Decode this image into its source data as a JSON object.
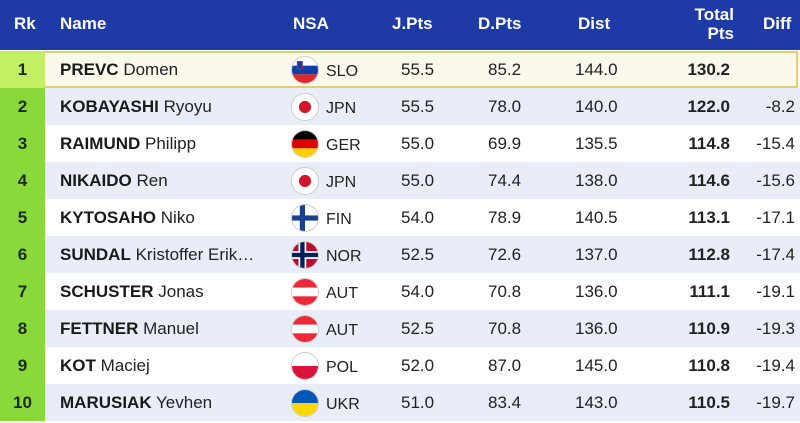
{
  "header": {
    "rk": "Rk",
    "name": "Name",
    "nsa": "NSA",
    "jpts": "J.Pts",
    "dpts": "D.Pts",
    "dist": "Dist",
    "total_line1": "Total",
    "total_line2": "Pts",
    "diff": "Diff"
  },
  "colors": {
    "header_bg": "#1d3aa6",
    "rank_green": "#8ad93a",
    "rank_top": "#c3ef64",
    "row_alt": "#e9edf7",
    "leader_border": "#e6cc74"
  },
  "rows": [
    {
      "rk": "1",
      "last": "PREVC",
      "first": "Domen",
      "flag": "slovenia-flag-icon",
      "nsa": "SLO",
      "jpts": "55.5",
      "dpts": "85.2",
      "dist": "144.0",
      "total": "130.2",
      "diff": ""
    },
    {
      "rk": "2",
      "last": "KOBAYASHI",
      "first": "Ryoyu",
      "flag": "japan-flag-icon",
      "nsa": "JPN",
      "jpts": "55.5",
      "dpts": "78.0",
      "dist": "140.0",
      "total": "122.0",
      "diff": "-8.2"
    },
    {
      "rk": "3",
      "last": "RAIMUND",
      "first": "Philipp",
      "flag": "germany-flag-icon",
      "nsa": "GER",
      "jpts": "55.0",
      "dpts": "69.9",
      "dist": "135.5",
      "total": "114.8",
      "diff": "-15.4"
    },
    {
      "rk": "4",
      "last": "NIKAIDO",
      "first": "Ren",
      "flag": "japan-flag-icon",
      "nsa": "JPN",
      "jpts": "55.0",
      "dpts": "74.4",
      "dist": "138.0",
      "total": "114.6",
      "diff": "-15.6"
    },
    {
      "rk": "5",
      "last": "KYTOSAHO",
      "first": "Niko",
      "flag": "finland-flag-icon",
      "nsa": "FIN",
      "jpts": "54.0",
      "dpts": "78.9",
      "dist": "140.5",
      "total": "113.1",
      "diff": "-17.1"
    },
    {
      "rk": "6",
      "last": "SUNDAL",
      "first": "Kristoffer Erik…",
      "flag": "norway-flag-icon",
      "nsa": "NOR",
      "jpts": "52.5",
      "dpts": "72.6",
      "dist": "137.0",
      "total": "112.8",
      "diff": "-17.4"
    },
    {
      "rk": "7",
      "last": "SCHUSTER",
      "first": "Jonas",
      "flag": "austria-flag-icon",
      "nsa": "AUT",
      "jpts": "54.0",
      "dpts": "70.8",
      "dist": "136.0",
      "total": "111.1",
      "diff": "-19.1"
    },
    {
      "rk": "8",
      "last": "FETTNER",
      "first": "Manuel",
      "flag": "austria-flag-icon",
      "nsa": "AUT",
      "jpts": "52.5",
      "dpts": "70.8",
      "dist": "136.0",
      "total": "110.9",
      "diff": "-19.3"
    },
    {
      "rk": "9",
      "last": "KOT",
      "first": "Maciej",
      "flag": "poland-flag-icon",
      "nsa": "POL",
      "jpts": "52.0",
      "dpts": "87.0",
      "dist": "145.0",
      "total": "110.8",
      "diff": "-19.4"
    },
    {
      "rk": "10",
      "last": "MARUSIAK",
      "first": "Yevhen",
      "flag": "ukraine-flag-icon",
      "nsa": "UKR",
      "jpts": "51.0",
      "dpts": "83.4",
      "dist": "143.0",
      "total": "110.5",
      "diff": "-19.7"
    }
  ]
}
